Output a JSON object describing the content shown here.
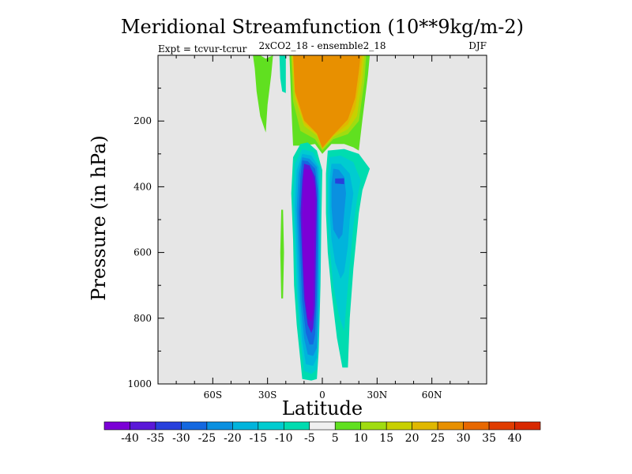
{
  "chart_data": {
    "type": "heatmap",
    "title": "Meridional Streamfunction (10**9kg/m-2)",
    "subtitle": "2xCO2_18 - ensemble2_18",
    "left_note": "Expt = tcvur-tcrur",
    "right_note": "DJF",
    "xlabel": "Latitude",
    "ylabel": "Pressure (in hPa)",
    "xlim": [
      -90,
      90
    ],
    "ylim": [
      1000,
      0
    ],
    "x_ticks": [
      {
        "value": -60,
        "label": "60S"
      },
      {
        "value": -30,
        "label": "30S"
      },
      {
        "value": 0,
        "label": "0"
      },
      {
        "value": 30,
        "label": "30N"
      },
      {
        "value": 60,
        "label": "60N"
      }
    ],
    "y_ticks": [
      {
        "value": 200,
        "label": "200"
      },
      {
        "value": 400,
        "label": "400"
      },
      {
        "value": 600,
        "label": "600"
      },
      {
        "value": 800,
        "label": "800"
      },
      {
        "value": 1000,
        "label": "1000"
      }
    ],
    "background_color": "#e6e6e6",
    "colorbar": {
      "levels": [
        "-40",
        "-35",
        "-30",
        "-25",
        "-20",
        "-15",
        "-10",
        "-5",
        "5",
        "10",
        "15",
        "20",
        "25",
        "30",
        "35",
        "40"
      ],
      "colors": [
        "#7b00d6",
        "#5a18d8",
        "#2840dc",
        "#1468e0",
        "#0a90e0",
        "#00b4dc",
        "#00ccd0",
        "#00dcb0",
        "#f0f0f0",
        "#60e020",
        "#a0dc10",
        "#c8d000",
        "#e0b800",
        "#e89000",
        "#e86800",
        "#e03c00",
        "#d82800"
      ]
    },
    "contours": [
      {
        "level_index": 16,
        "description": "upper-level positive cell",
        "points": [
          [
            -18,
            0
          ],
          [
            -16,
            130
          ],
          [
            -14,
            210
          ],
          [
            -8,
            250
          ],
          [
            0,
            285
          ],
          [
            6,
            245
          ],
          [
            14,
            170
          ],
          [
            18,
            90
          ],
          [
            21,
            0
          ]
        ]
      },
      {
        "level_index": 9,
        "points": [
          [
            -18,
            0
          ],
          [
            -17,
            150
          ],
          [
            -16,
            275
          ],
          [
            -10,
            275
          ],
          [
            -4,
            270
          ],
          [
            0,
            300
          ],
          [
            5,
            270
          ],
          [
            12,
            270
          ],
          [
            17,
            280
          ],
          [
            20,
            290
          ],
          [
            22,
            195
          ],
          [
            25,
            60
          ],
          [
            26,
            0
          ]
        ]
      },
      {
        "level_index": 10,
        "points": [
          [
            -17,
            0
          ],
          [
            -16,
            140
          ],
          [
            -12,
            230
          ],
          [
            -4,
            255
          ],
          [
            0,
            290
          ],
          [
            6,
            255
          ],
          [
            14,
            240
          ],
          [
            20,
            200
          ],
          [
            23,
            80
          ],
          [
            24,
            0
          ]
        ]
      },
      {
        "level_index": 11,
        "points": [
          [
            -17,
            0
          ],
          [
            -15,
            130
          ],
          [
            -10,
            215
          ],
          [
            -3,
            245
          ],
          [
            0,
            285
          ],
          [
            6,
            248
          ],
          [
            14,
            225
          ],
          [
            19,
            185
          ],
          [
            22,
            70
          ],
          [
            23,
            0
          ]
        ]
      },
      {
        "level_index": 12,
        "points": [
          [
            -16,
            0
          ],
          [
            -15,
            120
          ],
          [
            -10,
            205
          ],
          [
            -3,
            240
          ],
          [
            0,
            283
          ],
          [
            6,
            244
          ],
          [
            14,
            210
          ],
          [
            18,
            160
          ],
          [
            21,
            60
          ],
          [
            22,
            0
          ]
        ]
      },
      {
        "level_index": 13,
        "points": [
          [
            -16,
            0
          ],
          [
            -15,
            110
          ],
          [
            -10,
            198
          ],
          [
            -3,
            238
          ],
          [
            0,
            282
          ],
          [
            6,
            242
          ],
          [
            14,
            195
          ],
          [
            18,
            130
          ],
          [
            20,
            50
          ],
          [
            21,
            0
          ]
        ]
      },
      {
        "level_index": 9,
        "description": "left green filament",
        "points": [
          [
            -38,
            0
          ],
          [
            -37,
            40
          ],
          [
            -36,
            110
          ],
          [
            -34,
            185
          ],
          [
            -31,
            235
          ],
          [
            -30,
            150
          ],
          [
            -28,
            60
          ],
          [
            -27,
            0
          ],
          [
            -31,
            10
          ],
          [
            -34,
            0
          ]
        ]
      },
      {
        "level_index": 7,
        "description": "teal filament",
        "points": [
          [
            -23.5,
            0
          ],
          [
            -23,
            70
          ],
          [
            -22,
            110
          ],
          [
            -20,
            115
          ],
          [
            -20,
            60
          ],
          [
            -20,
            0
          ]
        ]
      },
      {
        "level_index": 9,
        "description": "narrow lower filament",
        "points": [
          [
            -22.5,
            470
          ],
          [
            -23,
            600
          ],
          [
            -22.5,
            740
          ],
          [
            -21.5,
            740
          ],
          [
            -21,
            600
          ],
          [
            -21.5,
            470
          ]
        ]
      },
      {
        "level_index": 7,
        "description": "southern negative cell",
        "points": [
          [
            -12,
            270
          ],
          [
            -16,
            310
          ],
          [
            -17,
            420
          ],
          [
            -16,
            560
          ],
          [
            -15.5,
            700
          ],
          [
            -14,
            820
          ],
          [
            -12,
            930
          ],
          [
            -11,
            985
          ],
          [
            -6,
            990
          ],
          [
            -3,
            985
          ],
          [
            -2,
            900
          ],
          [
            -1,
            700
          ],
          [
            -0.5,
            500
          ],
          [
            0,
            350
          ],
          [
            -3,
            290
          ],
          [
            -8,
            265
          ]
        ]
      },
      {
        "level_index": 6,
        "points": [
          [
            -11,
            285
          ],
          [
            -15,
            330
          ],
          [
            -16,
            440
          ],
          [
            -15,
            580
          ],
          [
            -14,
            720
          ],
          [
            -12,
            860
          ],
          [
            -10,
            960
          ],
          [
            -6,
            970
          ],
          [
            -3,
            955
          ],
          [
            -2,
            850
          ],
          [
            -1,
            650
          ],
          [
            -1,
            450
          ],
          [
            -1,
            340
          ],
          [
            -5,
            295
          ]
        ]
      },
      {
        "level_index": 5,
        "points": [
          [
            -11,
            300
          ],
          [
            -14,
            350
          ],
          [
            -15,
            460
          ],
          [
            -14,
            600
          ],
          [
            -13,
            740
          ],
          [
            -11,
            870
          ],
          [
            -9,
            940
          ],
          [
            -5,
            945
          ],
          [
            -3,
            920
          ],
          [
            -2,
            800
          ],
          [
            -1.5,
            600
          ],
          [
            -1.5,
            430
          ],
          [
            -2,
            340
          ],
          [
            -6,
            305
          ]
        ]
      },
      {
        "level_index": 4,
        "points": [
          [
            -11,
            310
          ],
          [
            -13,
            360
          ],
          [
            -14,
            470
          ],
          [
            -13,
            610
          ],
          [
            -12,
            750
          ],
          [
            -10,
            860
          ],
          [
            -8,
            910
          ],
          [
            -5,
            915
          ],
          [
            -3,
            890
          ],
          [
            -2.5,
            760
          ],
          [
            -2,
            580
          ],
          [
            -2,
            420
          ],
          [
            -3,
            340
          ],
          [
            -7,
            315
          ]
        ]
      },
      {
        "level_index": 3,
        "points": [
          [
            -11,
            320
          ],
          [
            -12,
            370
          ],
          [
            -13,
            480
          ],
          [
            -12,
            620
          ],
          [
            -11,
            750
          ],
          [
            -9,
            845
          ],
          [
            -7,
            880
          ],
          [
            -5,
            880
          ],
          [
            -4,
            850
          ],
          [
            -3,
            730
          ],
          [
            -2.5,
            560
          ],
          [
            -2.5,
            410
          ],
          [
            -4,
            345
          ],
          [
            -8,
            322
          ]
        ]
      },
      {
        "level_index": 1,
        "points": [
          [
            -10,
            330
          ],
          [
            -11,
            380
          ],
          [
            -12,
            480
          ],
          [
            -11,
            620
          ],
          [
            -10,
            740
          ],
          [
            -8,
            820
          ],
          [
            -6,
            845
          ],
          [
            -5,
            830
          ],
          [
            -4,
            760
          ],
          [
            -3.5,
            600
          ],
          [
            -3,
            440
          ],
          [
            -4,
            370
          ],
          [
            -7,
            335
          ]
        ]
      },
      {
        "level_index": 0,
        "points": [
          [
            -10,
            345
          ],
          [
            -10.5,
            400
          ],
          [
            -11,
            490
          ],
          [
            -10.5,
            620
          ],
          [
            -9.5,
            730
          ],
          [
            -8,
            800
          ],
          [
            -6,
            810
          ],
          [
            -5,
            780
          ],
          [
            -4.5,
            650
          ],
          [
            -4,
            500
          ],
          [
            -4,
            400
          ],
          [
            -6,
            350
          ]
        ]
      },
      {
        "level_index": 7,
        "description": "northern negative cell",
        "points": [
          [
            3,
            290
          ],
          [
            2,
            360
          ],
          [
            2,
            480
          ],
          [
            3,
            600
          ],
          [
            5,
            720
          ],
          [
            8,
            860
          ],
          [
            11,
            950
          ],
          [
            14,
            950
          ],
          [
            15,
            800
          ],
          [
            17,
            650
          ],
          [
            20,
            480
          ],
          [
            22,
            410
          ],
          [
            26,
            345
          ],
          [
            20,
            300
          ],
          [
            12,
            285
          ]
        ]
      },
      {
        "level_index": 6,
        "points": [
          [
            4,
            310
          ],
          [
            3,
            370
          ],
          [
            3,
            480
          ],
          [
            4,
            580
          ],
          [
            6,
            700
          ],
          [
            9,
            790
          ],
          [
            12,
            840
          ],
          [
            13,
            770
          ],
          [
            15,
            640
          ],
          [
            17,
            520
          ],
          [
            19,
            440
          ],
          [
            21,
            380
          ],
          [
            17,
            325
          ],
          [
            10,
            305
          ]
        ]
      },
      {
        "level_index": 5,
        "points": [
          [
            5,
            330
          ],
          [
            4,
            380
          ],
          [
            4,
            470
          ],
          [
            5,
            560
          ],
          [
            7,
            630
          ],
          [
            10,
            680
          ],
          [
            12,
            660
          ],
          [
            14,
            580
          ],
          [
            15,
            500
          ],
          [
            17,
            420
          ],
          [
            15,
            360
          ],
          [
            10,
            330
          ]
        ]
      },
      {
        "level_index": 4,
        "points": [
          [
            6,
            345
          ],
          [
            5,
            390
          ],
          [
            5,
            460
          ],
          [
            6,
            530
          ],
          [
            9,
            560
          ],
          [
            11,
            545
          ],
          [
            12,
            480
          ],
          [
            13,
            420
          ],
          [
            12,
            370
          ],
          [
            9,
            348
          ]
        ]
      },
      {
        "level_index": 2,
        "points": [
          [
            7,
            375
          ],
          [
            7,
            390
          ],
          [
            12,
            392
          ],
          [
            12,
            374
          ]
        ]
      }
    ]
  }
}
